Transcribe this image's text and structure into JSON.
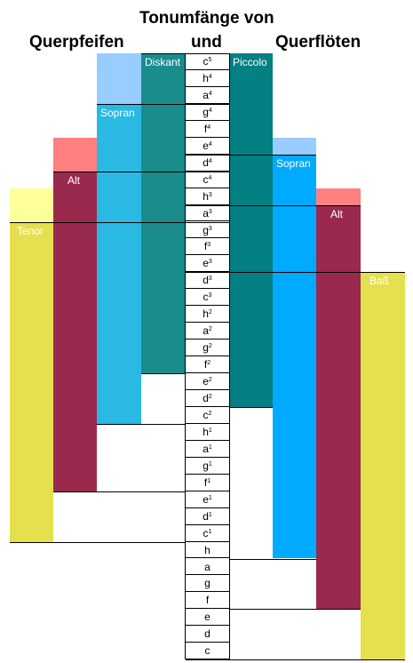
{
  "title": {
    "line1": "Tonumfänge von",
    "line2": "und",
    "left": "Querpfeifen",
    "right": "Querflöten"
  },
  "notes": [
    {
      "n": "c",
      "o": "5"
    },
    {
      "n": "h",
      "o": "4"
    },
    {
      "n": "a",
      "o": "4"
    },
    {
      "n": "g",
      "o": "4"
    },
    {
      "n": "f",
      "o": "4"
    },
    {
      "n": "e",
      "o": "4"
    },
    {
      "n": "d",
      "o": "4"
    },
    {
      "n": "c",
      "o": "4"
    },
    {
      "n": "h",
      "o": "3"
    },
    {
      "n": "a",
      "o": "3"
    },
    {
      "n": "g",
      "o": "3"
    },
    {
      "n": "f",
      "o": "3"
    },
    {
      "n": "e",
      "o": "3"
    },
    {
      "n": "d",
      "o": "3"
    },
    {
      "n": "c",
      "o": "3"
    },
    {
      "n": "h",
      "o": "2"
    },
    {
      "n": "a",
      "o": "2"
    },
    {
      "n": "g",
      "o": "2"
    },
    {
      "n": "f",
      "o": "2"
    },
    {
      "n": "e",
      "o": "2"
    },
    {
      "n": "d",
      "o": "2"
    },
    {
      "n": "c",
      "o": "2"
    },
    {
      "n": "h",
      "o": "1"
    },
    {
      "n": "a",
      "o": "1"
    },
    {
      "n": "g",
      "o": "1"
    },
    {
      "n": "f",
      "o": "1"
    },
    {
      "n": "e",
      "o": "1"
    },
    {
      "n": "d",
      "o": "1"
    },
    {
      "n": "c",
      "o": "1"
    },
    {
      "n": "h",
      "o": ""
    },
    {
      "n": "a",
      "o": ""
    },
    {
      "n": "g",
      "o": ""
    },
    {
      "n": "f",
      "o": ""
    },
    {
      "n": "e",
      "o": ""
    },
    {
      "n": "d",
      "o": ""
    },
    {
      "n": "c",
      "o": ""
    }
  ],
  "querpfeifen": [
    {
      "label": "Tenor",
      "color": "#e5e04e",
      "light": "#ffff99",
      "top_note": "h3",
      "main_note": "g3",
      "bottom_note": "c1"
    },
    {
      "label": "Alt",
      "color": "#992a4e",
      "light": "#ff8080",
      "top_note": "e4",
      "main_note": "c4",
      "bottom_note": "f1"
    },
    {
      "label": "Sopran",
      "color": "#29b9e3",
      "light": "#99ccff",
      "top_note": "c5",
      "main_note": "g4",
      "bottom_note": "c2"
    },
    {
      "label": "Diskant",
      "color": "#1a8c8c",
      "light": "",
      "top_note": "c5",
      "main_note": "c5",
      "bottom_note": "f2"
    }
  ],
  "querfloeten": [
    {
      "label": "Piccolo",
      "color": "#047f83",
      "light": "",
      "top_note": "c5",
      "main_note": "c5",
      "bottom_note": "d2"
    },
    {
      "label": "Sopran",
      "color": "#00aaff",
      "light": "#99ccff",
      "top_note": "e4",
      "main_note": "d4",
      "bottom_note": "h"
    },
    {
      "label": "Alt",
      "color": "#992a4e",
      "light": "#ff8080",
      "top_note": "h3",
      "main_note": "a3",
      "bottom_note": "f"
    },
    {
      "label": "Baß",
      "color": "#e5e04e",
      "light": "",
      "top_note": "d3",
      "main_note": "d3",
      "bottom_note": "c"
    }
  ]
}
